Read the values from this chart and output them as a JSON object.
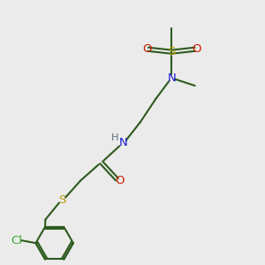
{
  "background_color": "#ebebeb",
  "bond_color": "#2d5a1e",
  "S_color": "#b8a000",
  "N_color": "#1a1acc",
  "O_color": "#cc1a00",
  "Cl_color": "#3aaa30",
  "H_color": "#607080",
  "figsize": [
    3.0,
    3.0
  ],
  "dpi": 100,
  "xlim": [
    0,
    10
  ],
  "ylim": [
    0,
    10
  ]
}
